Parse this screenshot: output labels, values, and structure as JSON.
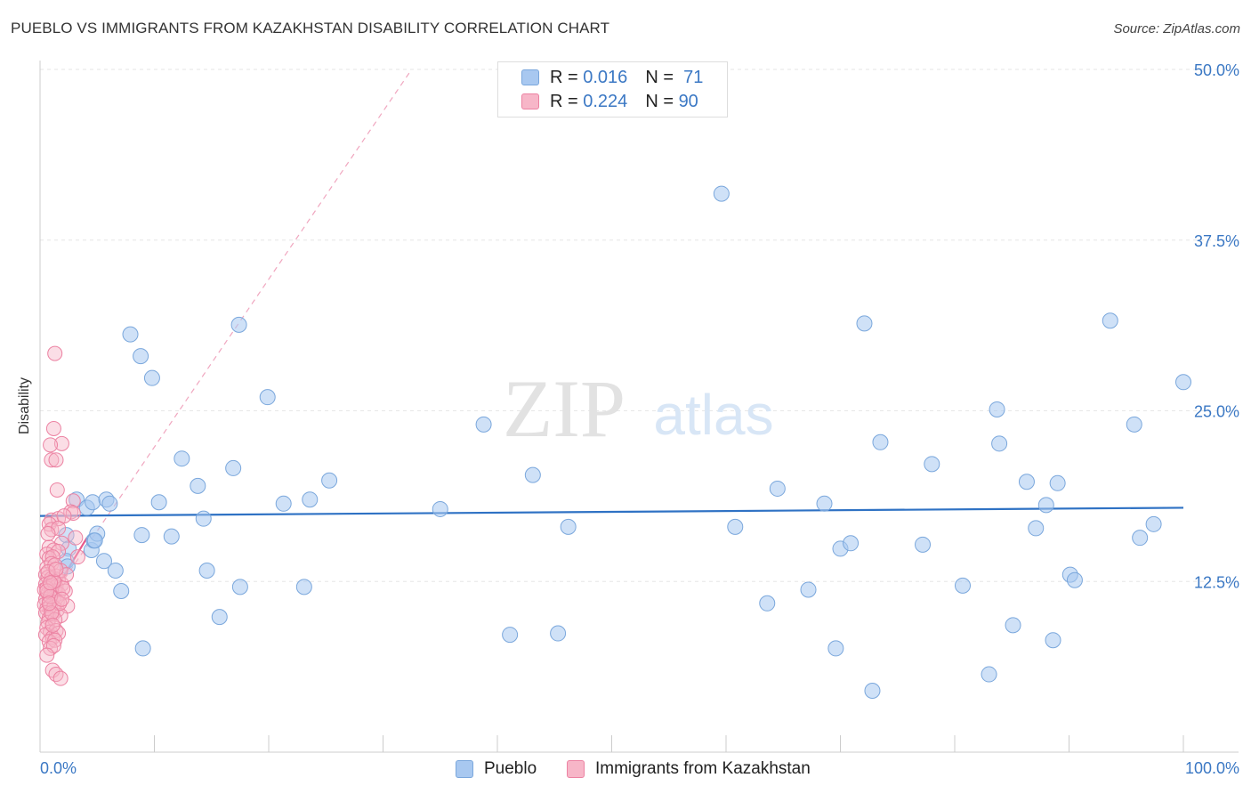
{
  "title": "PUEBLO VS IMMIGRANTS FROM KAZAKHSTAN DISABILITY CORRELATION CHART",
  "source": "Source: ZipAtlas.com",
  "watermark": {
    "zip": "ZIP",
    "atlas": "atlas"
  },
  "legend": {
    "r_label": "R =",
    "n_label": "N =",
    "entries": [
      {
        "r": "0.016",
        "n": "71",
        "color": "#a8c8f0"
      },
      {
        "r": "0.224",
        "n": "90",
        "color": "#f7b6c8"
      }
    ]
  },
  "bottom_legend": [
    "Pueblo",
    "Immigrants from Kazakhstan"
  ],
  "colors": {
    "blue_fill": "#a8c8f0",
    "blue_edge": "#7aa7dc",
    "blue_line": "#2f72c4",
    "pink_fill": "#f7b6c8",
    "pink_edge": "#ec82a2",
    "pink_line": "#e8588a",
    "axis_text": "#3b78c4",
    "grid": "#e6e6e6"
  },
  "chart_data": {
    "type": "scatter",
    "title": "PUEBLO VS IMMIGRANTS FROM KAZAKHSTAN DISABILITY CORRELATION CHART",
    "xlabel": "",
    "ylabel": "Disability",
    "xlim": [
      0,
      100
    ],
    "ylim": [
      0,
      50
    ],
    "x_tick_labels": [
      "0.0%",
      "100.0%"
    ],
    "y_ticks": [
      12.5,
      25.0,
      37.5,
      50.0
    ],
    "y_tick_labels": [
      "12.5%",
      "25.0%",
      "37.5%",
      "50.0%"
    ],
    "series": [
      {
        "name": "Pueblo",
        "r": 0.016,
        "n": 71,
        "trend": {
          "x": [
            0,
            100
          ],
          "y": [
            17.3,
            17.9
          ]
        },
        "points": [
          [
            2.3,
            15.9
          ],
          [
            2.5,
            14.9
          ],
          [
            2.3,
            14.0
          ],
          [
            2.4,
            13.6
          ],
          [
            3.2,
            18.5
          ],
          [
            4.1,
            17.9
          ],
          [
            4.5,
            14.8
          ],
          [
            4.7,
            15.5
          ],
          [
            5.0,
            16.0
          ],
          [
            4.8,
            15.5
          ],
          [
            4.6,
            18.3
          ],
          [
            5.8,
            18.5
          ],
          [
            6.1,
            18.2
          ],
          [
            5.6,
            14.0
          ],
          [
            6.6,
            13.3
          ],
          [
            7.1,
            11.8
          ],
          [
            7.9,
            30.6
          ],
          [
            8.8,
            29.0
          ],
          [
            9.8,
            27.4
          ],
          [
            10.4,
            18.3
          ],
          [
            9.0,
            7.6
          ],
          [
            8.9,
            15.9
          ],
          [
            11.5,
            15.8
          ],
          [
            12.4,
            21.5
          ],
          [
            13.8,
            19.5
          ],
          [
            14.3,
            17.1
          ],
          [
            14.6,
            13.3
          ],
          [
            15.7,
            9.9
          ],
          [
            16.9,
            20.8
          ],
          [
            17.4,
            31.3
          ],
          [
            17.5,
            12.1
          ],
          [
            19.9,
            26.0
          ],
          [
            21.3,
            18.2
          ],
          [
            23.1,
            12.1
          ],
          [
            23.6,
            18.5
          ],
          [
            25.3,
            19.9
          ],
          [
            35.0,
            17.8
          ],
          [
            38.8,
            24.0
          ],
          [
            41.1,
            8.6
          ],
          [
            43.1,
            20.3
          ],
          [
            45.3,
            8.7
          ],
          [
            46.2,
            16.5
          ],
          [
            59.6,
            40.9
          ],
          [
            60.8,
            16.5
          ],
          [
            63.6,
            10.9
          ],
          [
            64.5,
            19.3
          ],
          [
            67.2,
            11.9
          ],
          [
            68.6,
            18.2
          ],
          [
            69.6,
            7.6
          ],
          [
            70.0,
            14.9
          ],
          [
            70.9,
            15.3
          ],
          [
            72.1,
            31.4
          ],
          [
            72.8,
            4.5
          ],
          [
            73.5,
            22.7
          ],
          [
            77.2,
            15.2
          ],
          [
            78.0,
            21.1
          ],
          [
            80.7,
            12.2
          ],
          [
            83.0,
            5.7
          ],
          [
            83.7,
            25.1
          ],
          [
            83.9,
            22.6
          ],
          [
            85.1,
            9.3
          ],
          [
            86.3,
            19.8
          ],
          [
            87.1,
            16.4
          ],
          [
            88.0,
            18.1
          ],
          [
            88.6,
            8.2
          ],
          [
            89.0,
            19.7
          ],
          [
            90.1,
            13.0
          ],
          [
            90.5,
            12.6
          ],
          [
            93.6,
            31.6
          ],
          [
            95.7,
            24.0
          ],
          [
            96.2,
            15.7
          ],
          [
            97.4,
            16.7
          ],
          [
            100.0,
            27.1
          ]
        ]
      },
      {
        "name": "Immigrants from Kazakhstan",
        "r": 0.224,
        "n": 90,
        "trend": {
          "x": [
            0.2,
            4.1
          ],
          "y": [
            10.3,
            15.7
          ]
        },
        "trend_extended": {
          "x": [
            0.2,
            32.5
          ],
          "y": [
            10.3,
            50.0
          ]
        },
        "points": [
          [
            1.3,
            29.2
          ],
          [
            1.2,
            23.7
          ],
          [
            1.9,
            22.6
          ],
          [
            0.9,
            22.5
          ],
          [
            1.0,
            21.4
          ],
          [
            1.4,
            21.4
          ],
          [
            1.5,
            19.2
          ],
          [
            2.9,
            18.4
          ],
          [
            1.0,
            17.0
          ],
          [
            1.6,
            17.1
          ],
          [
            2.7,
            17.6
          ],
          [
            2.9,
            17.5
          ],
          [
            0.8,
            16.7
          ],
          [
            1.0,
            16.3
          ],
          [
            1.6,
            16.4
          ],
          [
            3.1,
            15.7
          ],
          [
            1.9,
            15.3
          ],
          [
            0.8,
            15.0
          ],
          [
            1.2,
            14.8
          ],
          [
            1.6,
            14.7
          ],
          [
            0.6,
            14.5
          ],
          [
            0.8,
            14.2
          ],
          [
            1.1,
            14.3
          ],
          [
            3.3,
            14.3
          ],
          [
            0.6,
            13.5
          ],
          [
            1.0,
            13.8
          ],
          [
            1.3,
            13.7
          ],
          [
            0.5,
            13.0
          ],
          [
            0.7,
            12.8
          ],
          [
            1.0,
            12.7
          ],
          [
            1.4,
            12.9
          ],
          [
            1.6,
            12.6
          ],
          [
            0.5,
            12.3
          ],
          [
            0.8,
            12.1
          ],
          [
            1.1,
            12.2
          ],
          [
            1.4,
            12.1
          ],
          [
            1.9,
            12.3
          ],
          [
            0.4,
            11.9
          ],
          [
            0.7,
            11.6
          ],
          [
            1.0,
            11.7
          ],
          [
            1.3,
            11.8
          ],
          [
            1.6,
            11.6
          ],
          [
            2.2,
            11.8
          ],
          [
            0.5,
            11.2
          ],
          [
            0.8,
            11.1
          ],
          [
            1.2,
            11.3
          ],
          [
            1.5,
            11.0
          ],
          [
            0.4,
            10.8
          ],
          [
            0.6,
            10.5
          ],
          [
            0.9,
            10.7
          ],
          [
            1.2,
            10.6
          ],
          [
            1.5,
            10.4
          ],
          [
            2.4,
            10.7
          ],
          [
            0.5,
            10.2
          ],
          [
            0.8,
            9.8
          ],
          [
            1.1,
            10.1
          ],
          [
            1.8,
            10.0
          ],
          [
            0.7,
            9.5
          ],
          [
            1.3,
            9.7
          ],
          [
            0.6,
            9.1
          ],
          [
            0.9,
            8.8
          ],
          [
            1.4,
            8.9
          ],
          [
            0.5,
            8.6
          ],
          [
            1.1,
            8.4
          ],
          [
            1.6,
            8.7
          ],
          [
            0.8,
            8.1
          ],
          [
            1.3,
            8.2
          ],
          [
            0.9,
            7.6
          ],
          [
            1.2,
            7.8
          ],
          [
            0.6,
            7.1
          ],
          [
            1.1,
            6.0
          ],
          [
            1.4,
            5.7
          ],
          [
            1.8,
            5.4
          ],
          [
            0.7,
            16.0
          ],
          [
            2.1,
            17.3
          ],
          [
            1.8,
            13.3
          ],
          [
            0.6,
            12.0
          ],
          [
            2.0,
            12.0
          ],
          [
            1.7,
            10.9
          ],
          [
            0.9,
            11.4
          ],
          [
            1.2,
            12.5
          ],
          [
            0.7,
            13.2
          ],
          [
            1.0,
            10.2
          ],
          [
            2.3,
            13.0
          ],
          [
            0.6,
            11.8
          ],
          [
            1.4,
            13.4
          ],
          [
            0.8,
            10.9
          ],
          [
            1.9,
            11.2
          ],
          [
            1.1,
            9.3
          ],
          [
            0.9,
            12.4
          ]
        ]
      }
    ],
    "legend_position": "top-center"
  }
}
